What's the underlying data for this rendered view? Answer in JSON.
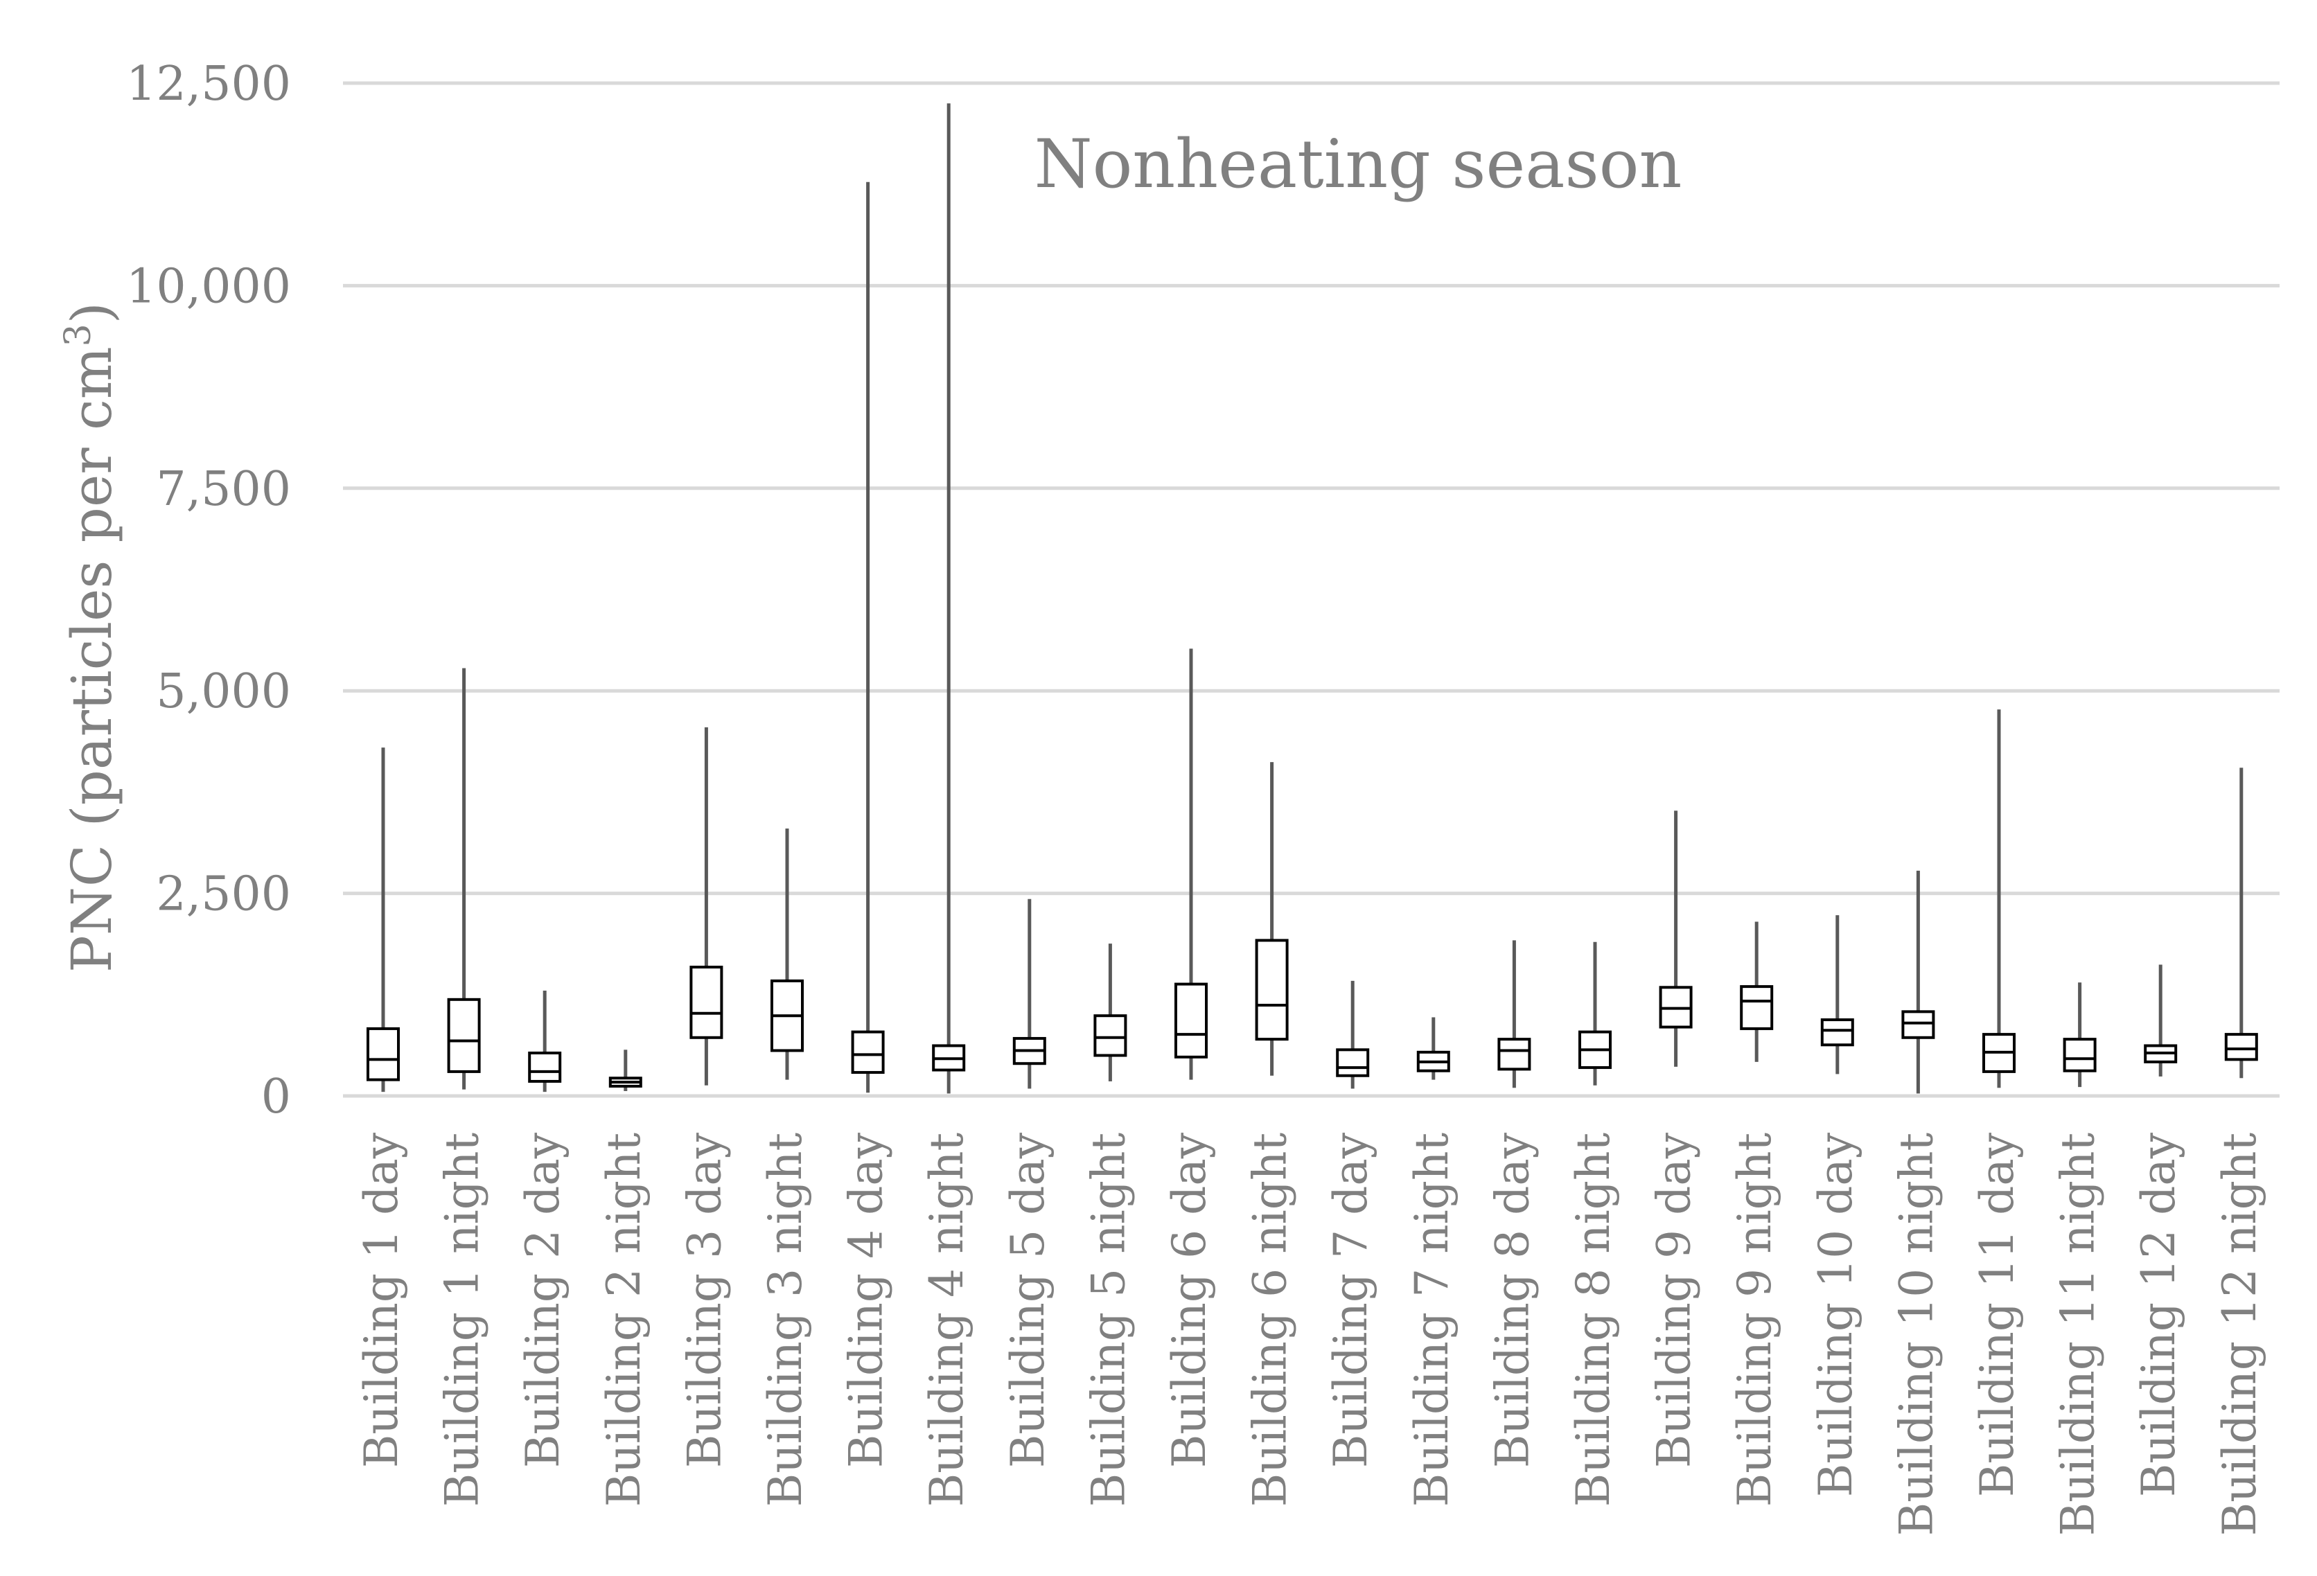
{
  "chart_data": {
    "type": "box",
    "title": "Nonheating season",
    "xlabel": "",
    "ylabel": "PNC (particles per cm",
    "ylabel_superscript": "3",
    "ylabel_close": ")",
    "ylim": [
      0,
      12500
    ],
    "yticks": [
      0,
      2500,
      5000,
      7500,
      10000,
      12500
    ],
    "ytick_labels": [
      "0",
      "2,500",
      "5,000",
      "7,500",
      "10,000",
      "12,500"
    ],
    "grid": true,
    "categories": [
      "Building 1 day",
      "Building 1 night",
      "Building 2 day",
      "Building 2 night",
      "Building 3 day",
      "Building 3 night",
      "Building 4 day",
      "Building 4 night",
      "Building 5 day",
      "Building 5 night",
      "Building 6 day",
      "Building 6 night",
      "Building 7 day",
      "Building 7 night",
      "Building 8 day",
      "Building 8 night",
      "Building 9 day",
      "Building 9 night",
      "Building 10 day",
      "Building 10 night",
      "Building 11 day",
      "Building 11 night",
      "Building 12 day",
      "Building 12 night"
    ],
    "boxes": [
      {
        "min": 50,
        "q1": 200,
        "median": 450,
        "q3": 830,
        "max": 4300
      },
      {
        "min": 80,
        "q1": 300,
        "median": 680,
        "q3": 1190,
        "max": 5280
      },
      {
        "min": 50,
        "q1": 180,
        "median": 300,
        "q3": 530,
        "max": 1300
      },
      {
        "min": 60,
        "q1": 120,
        "median": 170,
        "q3": 220,
        "max": 570
      },
      {
        "min": 130,
        "q1": 720,
        "median": 1020,
        "q3": 1590,
        "max": 4550
      },
      {
        "min": 200,
        "q1": 560,
        "median": 990,
        "q3": 1420,
        "max": 3300
      },
      {
        "min": 40,
        "q1": 290,
        "median": 510,
        "q3": 790,
        "max": 11280
      },
      {
        "min": 30,
        "q1": 320,
        "median": 460,
        "q3": 620,
        "max": 12250
      },
      {
        "min": 90,
        "q1": 400,
        "median": 560,
        "q3": 710,
        "max": 2430
      },
      {
        "min": 180,
        "q1": 500,
        "median": 720,
        "q3": 990,
        "max": 1880
      },
      {
        "min": 200,
        "q1": 480,
        "median": 760,
        "q3": 1380,
        "max": 5520
      },
      {
        "min": 250,
        "q1": 700,
        "median": 1120,
        "q3": 1920,
        "max": 4120
      },
      {
        "min": 90,
        "q1": 250,
        "median": 350,
        "q3": 570,
        "max": 1420
      },
      {
        "min": 200,
        "q1": 310,
        "median": 420,
        "q3": 540,
        "max": 970
      },
      {
        "min": 100,
        "q1": 330,
        "median": 560,
        "q3": 700,
        "max": 1920
      },
      {
        "min": 130,
        "q1": 350,
        "median": 570,
        "q3": 790,
        "max": 1900
      },
      {
        "min": 360,
        "q1": 850,
        "median": 1080,
        "q3": 1340,
        "max": 3520
      },
      {
        "min": 420,
        "q1": 830,
        "median": 1170,
        "q3": 1350,
        "max": 2150
      },
      {
        "min": 270,
        "q1": 630,
        "median": 810,
        "q3": 940,
        "max": 2230
      },
      {
        "min": 30,
        "q1": 720,
        "median": 900,
        "q3": 1040,
        "max": 2780
      },
      {
        "min": 100,
        "q1": 300,
        "median": 540,
        "q3": 760,
        "max": 4770
      },
      {
        "min": 110,
        "q1": 310,
        "median": 460,
        "q3": 700,
        "max": 1400
      },
      {
        "min": 240,
        "q1": 420,
        "median": 530,
        "q3": 620,
        "max": 1620
      },
      {
        "min": 220,
        "q1": 450,
        "median": 580,
        "q3": 760,
        "max": 4050
      }
    ]
  },
  "colors": {
    "axis_text": "#808080",
    "grid": "#d9d9d9",
    "whisker": "#595959",
    "box_stroke": "#000000",
    "box_fill": "#ffffff"
  }
}
